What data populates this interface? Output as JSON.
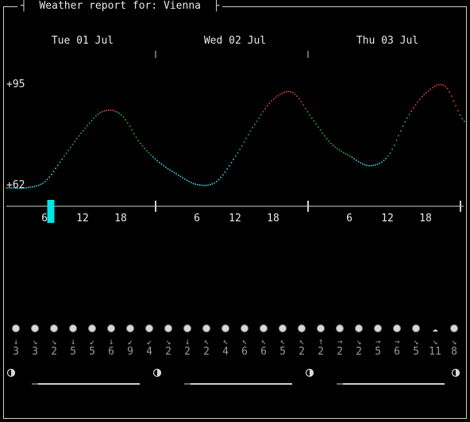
{
  "window": {
    "title": "Weather report for: Vienna"
  },
  "days": [
    {
      "label": "Tue 01 Jul"
    },
    {
      "label": "Wed 02 Jul"
    },
    {
      "label": "Thu 03 Jul"
    }
  ],
  "chart_data": {
    "type": "line",
    "title": "",
    "y_labels": [
      "+95",
      "+62"
    ],
    "ylim": [
      62,
      95
    ],
    "x_tick_labels": [
      "6",
      "12",
      "18",
      "6",
      "12",
      "18",
      "6",
      "12",
      "18"
    ],
    "x_hours": [
      0,
      3,
      6,
      9,
      12,
      15,
      18,
      21,
      24,
      27,
      30,
      33,
      36,
      39,
      42,
      45,
      48,
      51,
      54,
      57,
      60,
      63,
      66,
      69,
      72
    ],
    "temperature": [
      62,
      62,
      64,
      72,
      80,
      86,
      85,
      76,
      70,
      66,
      63,
      64,
      72,
      82,
      90,
      92,
      84,
      76,
      72,
      69,
      72,
      84,
      92,
      94,
      83
    ],
    "current_hour_marker": 7,
    "colors": {
      "cold": "#3fd3e0",
      "mild": "#2fb03f",
      "warm": "#e0473f",
      "marker": "#00e5e5"
    }
  },
  "forecast": {
    "wind_arrows": [
      "↓",
      "↘",
      "↘",
      "↓",
      "↙",
      "↓",
      "↙",
      "↙",
      "↘",
      "↓",
      "↖",
      "↖",
      "↖",
      "↖",
      "↖",
      "↖",
      "↑",
      "→",
      "↘",
      "→",
      "→",
      "↘",
      "↘",
      "↘"
    ],
    "wind_speeds": [
      "3",
      "3",
      "2",
      "5",
      "5",
      "6",
      "9",
      "4",
      "2",
      "2",
      "2",
      "4",
      "6",
      "6",
      "5",
      "2",
      "2",
      "2",
      "2",
      "5",
      "6",
      "5",
      "11",
      "8"
    ],
    "weather_icons": [
      "moon",
      "moon",
      "moon",
      "moon",
      "moon",
      "moon",
      "moon",
      "moon",
      "moon",
      "moon",
      "moon",
      "moon",
      "moon",
      "moon",
      "moon",
      "moon",
      "moon",
      "moon",
      "moon",
      "moon",
      "moon",
      "moon",
      "cloud",
      "moon"
    ]
  },
  "moon_phase_icon": "half-moon"
}
